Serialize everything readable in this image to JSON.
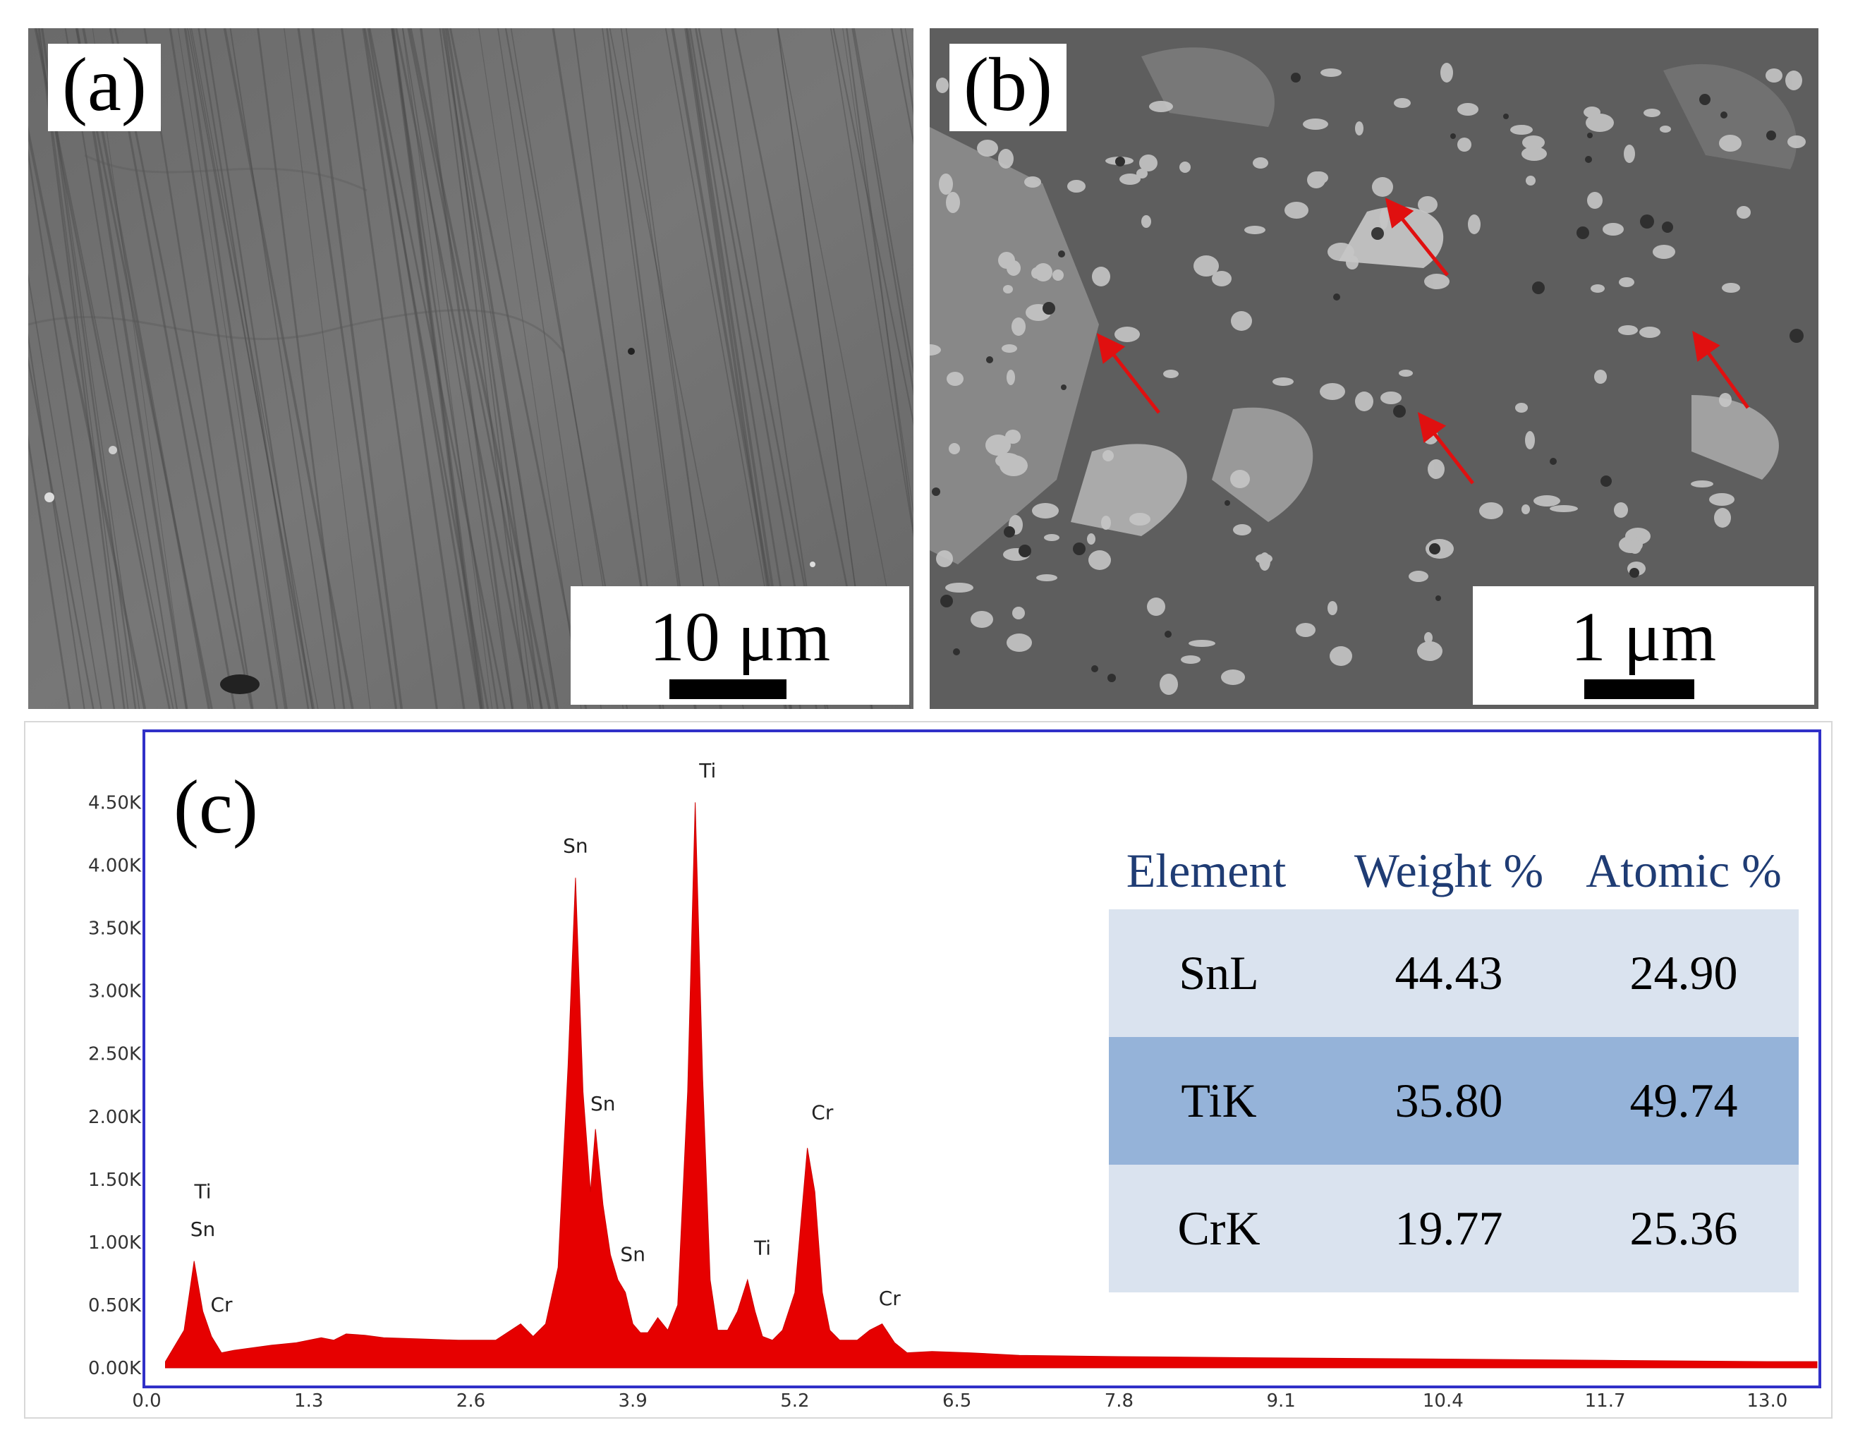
{
  "panel_a": {
    "label": "(a)",
    "scale_text": "10 μm"
  },
  "panel_b": {
    "label": "(b)",
    "scale_text": "1 μm"
  },
  "panel_c": {
    "label": "(c)"
  },
  "colors": {
    "spectrum": "#e60000",
    "frame": "#3030c8",
    "arrow": "#e01010",
    "table_header_text": "#1f3c74",
    "table_light": "#dae3ef",
    "table_dark": "#95b3d9"
  },
  "chart_data": {
    "type": "area",
    "title": "",
    "xlabel": "",
    "ylabel": "",
    "xlim": [
      0.0,
      13.4
    ],
    "ylim": [
      0.0,
      4.8
    ],
    "x_ticks": [
      "0.0",
      "1.3",
      "2.6",
      "3.9",
      "5.2",
      "6.5",
      "7.8",
      "9.1",
      "10.4",
      "11.7",
      "13.0"
    ],
    "y_ticks": [
      "0.00K",
      "0.50K",
      "1.00K",
      "1.50K",
      "2.00K",
      "2.50K",
      "3.00K",
      "3.50K",
      "4.00K",
      "4.50K"
    ],
    "series": [
      {
        "x": [
          0.15,
          0.3,
          0.38,
          0.45,
          0.52,
          0.6,
          0.7,
          0.85,
          1.0,
          1.2,
          1.4,
          1.5,
          1.6,
          1.75,
          1.9,
          2.2,
          2.5,
          2.8,
          3.0,
          3.1,
          3.2,
          3.3,
          3.38,
          3.44,
          3.5,
          3.56,
          3.6,
          3.66,
          3.72,
          3.78,
          3.84,
          3.9,
          3.96,
          4.02,
          4.1,
          4.18,
          4.26,
          4.34,
          4.4,
          4.46,
          4.52,
          4.58,
          4.66,
          4.74,
          4.82,
          4.88,
          4.94,
          5.02,
          5.1,
          5.2,
          5.3,
          5.36,
          5.42,
          5.48,
          5.56,
          5.7,
          5.8,
          5.9,
          6.0,
          6.1,
          6.3,
          6.6,
          7.0,
          7.8,
          9.0,
          10.4,
          11.7,
          13.0,
          13.4
        ],
        "y": [
          0.05,
          0.3,
          0.85,
          0.45,
          0.25,
          0.12,
          0.14,
          0.16,
          0.18,
          0.2,
          0.24,
          0.22,
          0.27,
          0.26,
          0.24,
          0.23,
          0.22,
          0.22,
          0.35,
          0.25,
          0.35,
          0.8,
          2.4,
          3.9,
          2.2,
          1.4,
          1.9,
          1.3,
          0.9,
          0.7,
          0.6,
          0.35,
          0.28,
          0.28,
          0.4,
          0.3,
          0.5,
          2.2,
          4.5,
          2.3,
          0.7,
          0.3,
          0.3,
          0.45,
          0.7,
          0.45,
          0.25,
          0.22,
          0.3,
          0.6,
          1.75,
          1.4,
          0.6,
          0.3,
          0.22,
          0.22,
          0.3,
          0.35,
          0.2,
          0.12,
          0.13,
          0.12,
          0.1,
          0.09,
          0.08,
          0.07,
          0.06,
          0.05,
          0.05
        ]
      }
    ],
    "annotations": [
      {
        "text": "Ti",
        "x": 0.45,
        "y": 1.35
      },
      {
        "text": "Sn",
        "x": 0.45,
        "y": 1.05
      },
      {
        "text": "Cr",
        "x": 0.6,
        "y": 0.45
      },
      {
        "text": "Sn",
        "x": 3.44,
        "y": 4.1
      },
      {
        "text": "Sn",
        "x": 3.66,
        "y": 2.05
      },
      {
        "text": "Sn",
        "x": 3.9,
        "y": 0.85
      },
      {
        "text": "Ti",
        "x": 4.5,
        "y": 4.7
      },
      {
        "text": "Ti",
        "x": 4.94,
        "y": 0.9
      },
      {
        "text": "Cr",
        "x": 5.42,
        "y": 1.98
      },
      {
        "text": "Cr",
        "x": 5.96,
        "y": 0.5
      }
    ]
  },
  "table": {
    "headers": [
      "Element",
      "Weight %",
      "Atomic %"
    ],
    "rows": [
      {
        "element": "SnL",
        "weight": "44.43",
        "atomic": "24.90"
      },
      {
        "element": "TiK",
        "weight": "35.80",
        "atomic": "49.74"
      },
      {
        "element": "CrK",
        "weight": "19.77",
        "atomic": "25.36"
      }
    ]
  }
}
